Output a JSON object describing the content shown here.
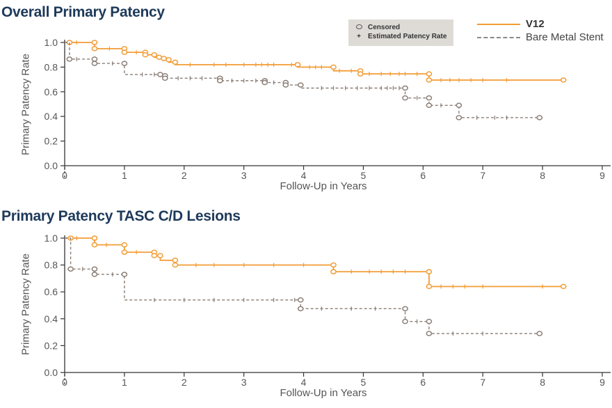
{
  "chart_data": [
    {
      "type": "line",
      "title": "Overall Primary Patency",
      "xlabel": "Follow-Up in Years",
      "ylabel": "Primary Patency Rate",
      "xlim": [
        0,
        9
      ],
      "ylim": [
        0,
        1.0
      ],
      "xticks": [
        "0",
        "1",
        "2",
        "3",
        "4",
        "5",
        "6",
        "7",
        "8",
        "9"
      ],
      "yticks": [
        "0.0",
        "0.2",
        "0.4",
        "0.6",
        "0.8",
        "1.0"
      ],
      "legend": {
        "symbols": [
          {
            "label": "Censored",
            "icon": "circle"
          },
          {
            "label": "Estimated Patency Rate",
            "icon": "plus"
          }
        ],
        "series": [
          {
            "label": "V12",
            "style": "solid"
          },
          {
            "label": "Bare Metal Stent",
            "style": "dashed"
          }
        ]
      },
      "series": [
        {
          "name": "V12",
          "color": "#f39c34",
          "dashed": false,
          "steps": [
            [
              0,
              1.0
            ],
            [
              0.5,
              0.95
            ],
            [
              1.0,
              0.92
            ],
            [
              1.35,
              0.9
            ],
            [
              1.5,
              0.88
            ],
            [
              1.58,
              0.87
            ],
            [
              1.66,
              0.86
            ],
            [
              1.74,
              0.84
            ],
            [
              1.85,
              0.82
            ],
            [
              3.9,
              0.8
            ],
            [
              4.5,
              0.77
            ],
            [
              4.95,
              0.745
            ],
            [
              6.1,
              0.695
            ],
            [
              8.35,
              0.695
            ]
          ],
          "censored": [
            [
              0.08,
              1.0
            ],
            [
              0.5,
              1.0
            ],
            [
              0.5,
              0.95
            ],
            [
              1.0,
              0.95
            ],
            [
              1.0,
              0.92
            ],
            [
              1.35,
              0.92
            ],
            [
              1.35,
              0.9
            ],
            [
              1.5,
              0.9
            ],
            [
              1.58,
              0.88
            ],
            [
              1.66,
              0.87
            ],
            [
              1.74,
              0.86
            ],
            [
              1.85,
              0.84
            ],
            [
              3.9,
              0.82
            ],
            [
              4.5,
              0.8
            ],
            [
              4.95,
              0.77
            ],
            [
              4.95,
              0.745
            ],
            [
              6.1,
              0.745
            ],
            [
              6.1,
              0.695
            ],
            [
              8.35,
              0.695
            ]
          ],
          "estimates": [
            [
              0.2,
              1.0
            ],
            [
              0.75,
              0.95
            ],
            [
              1.2,
              0.92
            ],
            [
              2.1,
              0.82
            ],
            [
              2.5,
              0.82
            ],
            [
              2.7,
              0.82
            ],
            [
              3.0,
              0.82
            ],
            [
              3.2,
              0.82
            ],
            [
              3.3,
              0.82
            ],
            [
              3.4,
              0.82
            ],
            [
              3.5,
              0.82
            ],
            [
              3.8,
              0.82
            ],
            [
              4.1,
              0.8
            ],
            [
              4.2,
              0.8
            ],
            [
              4.3,
              0.8
            ],
            [
              4.6,
              0.77
            ],
            [
              4.8,
              0.77
            ],
            [
              5.1,
              0.745
            ],
            [
              5.3,
              0.745
            ],
            [
              5.45,
              0.745
            ],
            [
              5.6,
              0.745
            ],
            [
              5.7,
              0.745
            ],
            [
              5.9,
              0.745
            ],
            [
              6.3,
              0.695
            ],
            [
              6.45,
              0.695
            ],
            [
              6.6,
              0.695
            ],
            [
              6.8,
              0.695
            ],
            [
              7.0,
              0.695
            ],
            [
              7.4,
              0.695
            ]
          ]
        },
        {
          "name": "Bare Metal Stent",
          "color": "#8a7e76",
          "dashed": true,
          "steps": [
            [
              0,
              1.0
            ],
            [
              0.08,
              0.865
            ],
            [
              0.5,
              0.83
            ],
            [
              1.0,
              0.74
            ],
            [
              1.6,
              0.73
            ],
            [
              1.68,
              0.71
            ],
            [
              2.6,
              0.69
            ],
            [
              3.35,
              0.675
            ],
            [
              3.7,
              0.655
            ],
            [
              3.95,
              0.63
            ],
            [
              5.7,
              0.55
            ],
            [
              6.1,
              0.49
            ],
            [
              6.6,
              0.39
            ],
            [
              7.95,
              0.39
            ]
          ],
          "censored": [
            [
              0.08,
              0.865
            ],
            [
              0.5,
              0.865
            ],
            [
              0.5,
              0.83
            ],
            [
              1.0,
              0.83
            ],
            [
              1.6,
              0.74
            ],
            [
              1.68,
              0.73
            ],
            [
              1.68,
              0.71
            ],
            [
              2.6,
              0.71
            ],
            [
              2.6,
              0.69
            ],
            [
              3.35,
              0.69
            ],
            [
              3.35,
              0.675
            ],
            [
              3.7,
              0.675
            ],
            [
              3.7,
              0.655
            ],
            [
              3.95,
              0.655
            ],
            [
              5.7,
              0.63
            ],
            [
              5.7,
              0.55
            ],
            [
              6.1,
              0.55
            ],
            [
              6.1,
              0.49
            ],
            [
              6.6,
              0.49
            ],
            [
              6.6,
              0.39
            ],
            [
              7.95,
              0.39
            ]
          ],
          "estimates": [
            [
              0.2,
              0.865
            ],
            [
              0.8,
              0.83
            ],
            [
              1.3,
              0.74
            ],
            [
              1.5,
              0.74
            ],
            [
              1.9,
              0.71
            ],
            [
              2.1,
              0.71
            ],
            [
              2.3,
              0.71
            ],
            [
              2.8,
              0.69
            ],
            [
              3.0,
              0.69
            ],
            [
              3.2,
              0.69
            ],
            [
              3.5,
              0.675
            ],
            [
              4.3,
              0.63
            ],
            [
              4.5,
              0.63
            ],
            [
              4.7,
              0.63
            ],
            [
              4.9,
              0.63
            ],
            [
              5.1,
              0.63
            ],
            [
              5.3,
              0.63
            ],
            [
              5.4,
              0.63
            ],
            [
              5.5,
              0.63
            ],
            [
              5.6,
              0.63
            ],
            [
              5.9,
              0.55
            ],
            [
              6.3,
              0.49
            ],
            [
              6.9,
              0.39
            ],
            [
              7.2,
              0.39
            ],
            [
              7.4,
              0.39
            ]
          ]
        }
      ]
    },
    {
      "type": "line",
      "title": "Primary Patency TASC C/D Lesions",
      "xlabel": "Follow-Up in Years",
      "ylabel": "Primary Patency Rate",
      "xlim": [
        0,
        9
      ],
      "ylim": [
        0,
        1.0
      ],
      "xticks": [
        "0",
        "1",
        "2",
        "3",
        "4",
        "5",
        "6",
        "7",
        "8",
        "9"
      ],
      "yticks": [
        "0.0",
        "0.2",
        "0.4",
        "0.6",
        "0.8",
        "1.0"
      ],
      "series": [
        {
          "name": "V12",
          "color": "#f39c34",
          "dashed": false,
          "steps": [
            [
              0,
              1.0
            ],
            [
              0.5,
              0.95
            ],
            [
              1.0,
              0.895
            ],
            [
              1.5,
              0.87
            ],
            [
              1.6,
              0.835
            ],
            [
              1.85,
              0.8
            ],
            [
              4.5,
              0.75
            ],
            [
              6.1,
              0.64
            ],
            [
              8.35,
              0.64
            ]
          ],
          "censored": [
            [
              0.1,
              1.0
            ],
            [
              0.5,
              1.0
            ],
            [
              0.5,
              0.95
            ],
            [
              1.0,
              0.95
            ],
            [
              1.0,
              0.895
            ],
            [
              1.5,
              0.895
            ],
            [
              1.5,
              0.87
            ],
            [
              1.6,
              0.87
            ],
            [
              1.85,
              0.835
            ],
            [
              1.85,
              0.8
            ],
            [
              4.5,
              0.8
            ],
            [
              4.5,
              0.75
            ],
            [
              6.1,
              0.75
            ],
            [
              6.1,
              0.64
            ],
            [
              8.35,
              0.64
            ]
          ],
          "estimates": [
            [
              0.2,
              1.0
            ],
            [
              0.7,
              0.95
            ],
            [
              1.2,
              0.895
            ],
            [
              2.2,
              0.8
            ],
            [
              2.5,
              0.8
            ],
            [
              3.0,
              0.8
            ],
            [
              3.5,
              0.8
            ],
            [
              4.0,
              0.8
            ],
            [
              4.8,
              0.75
            ],
            [
              5.1,
              0.75
            ],
            [
              5.3,
              0.75
            ],
            [
              5.5,
              0.75
            ],
            [
              5.7,
              0.75
            ],
            [
              6.3,
              0.64
            ],
            [
              6.5,
              0.64
            ],
            [
              6.7,
              0.64
            ],
            [
              7.0,
              0.64
            ],
            [
              8.0,
              0.64
            ]
          ]
        },
        {
          "name": "Bare Metal Stent",
          "color": "#8a7e76",
          "dashed": true,
          "steps": [
            [
              0,
              1.0
            ],
            [
              0.1,
              0.77
            ],
            [
              0.5,
              0.73
            ],
            [
              1.0,
              0.54
            ],
            [
              3.95,
              0.475
            ],
            [
              5.7,
              0.38
            ],
            [
              6.1,
              0.29
            ],
            [
              7.95,
              0.29
            ]
          ],
          "censored": [
            [
              0.1,
              0.77
            ],
            [
              0.5,
              0.77
            ],
            [
              0.5,
              0.73
            ],
            [
              1.0,
              0.73
            ],
            [
              3.95,
              0.54
            ],
            [
              3.95,
              0.475
            ],
            [
              5.7,
              0.475
            ],
            [
              5.7,
              0.38
            ],
            [
              6.1,
              0.38
            ],
            [
              6.1,
              0.29
            ],
            [
              7.95,
              0.29
            ]
          ],
          "estimates": [
            [
              0.3,
              0.77
            ],
            [
              0.8,
              0.73
            ],
            [
              1.5,
              0.54
            ],
            [
              2.0,
              0.54
            ],
            [
              2.5,
              0.54
            ],
            [
              3.0,
              0.54
            ],
            [
              3.5,
              0.54
            ],
            [
              3.85,
              0.54
            ],
            [
              4.3,
              0.475
            ],
            [
              4.8,
              0.475
            ],
            [
              5.2,
              0.475
            ],
            [
              5.9,
              0.38
            ],
            [
              6.5,
              0.29
            ],
            [
              7.0,
              0.29
            ]
          ]
        }
      ]
    }
  ]
}
